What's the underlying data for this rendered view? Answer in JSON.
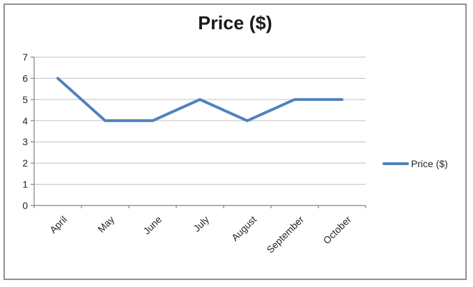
{
  "title": "Price ($)",
  "chart_data": {
    "type": "line",
    "title": "Price ($)",
    "categories": [
      "April",
      "May",
      "June",
      "July",
      "August",
      "September",
      "October"
    ],
    "series": [
      {
        "name": "Price ($)",
        "values": [
          6,
          4,
          4,
          5,
          4,
          5,
          5
        ]
      }
    ],
    "xlabel": "",
    "ylabel": "",
    "ylim": [
      0,
      7
    ],
    "ytick_step": 1,
    "yticks": [
      0,
      1,
      2,
      3,
      4,
      5,
      6,
      7
    ],
    "grid": true,
    "legend_position": "right",
    "x_label_rotation_deg": -45,
    "line_color": "#4F81BD",
    "gridline_color": "#BFBFBF",
    "axis_color": "#808080",
    "text_color": "#262626"
  }
}
